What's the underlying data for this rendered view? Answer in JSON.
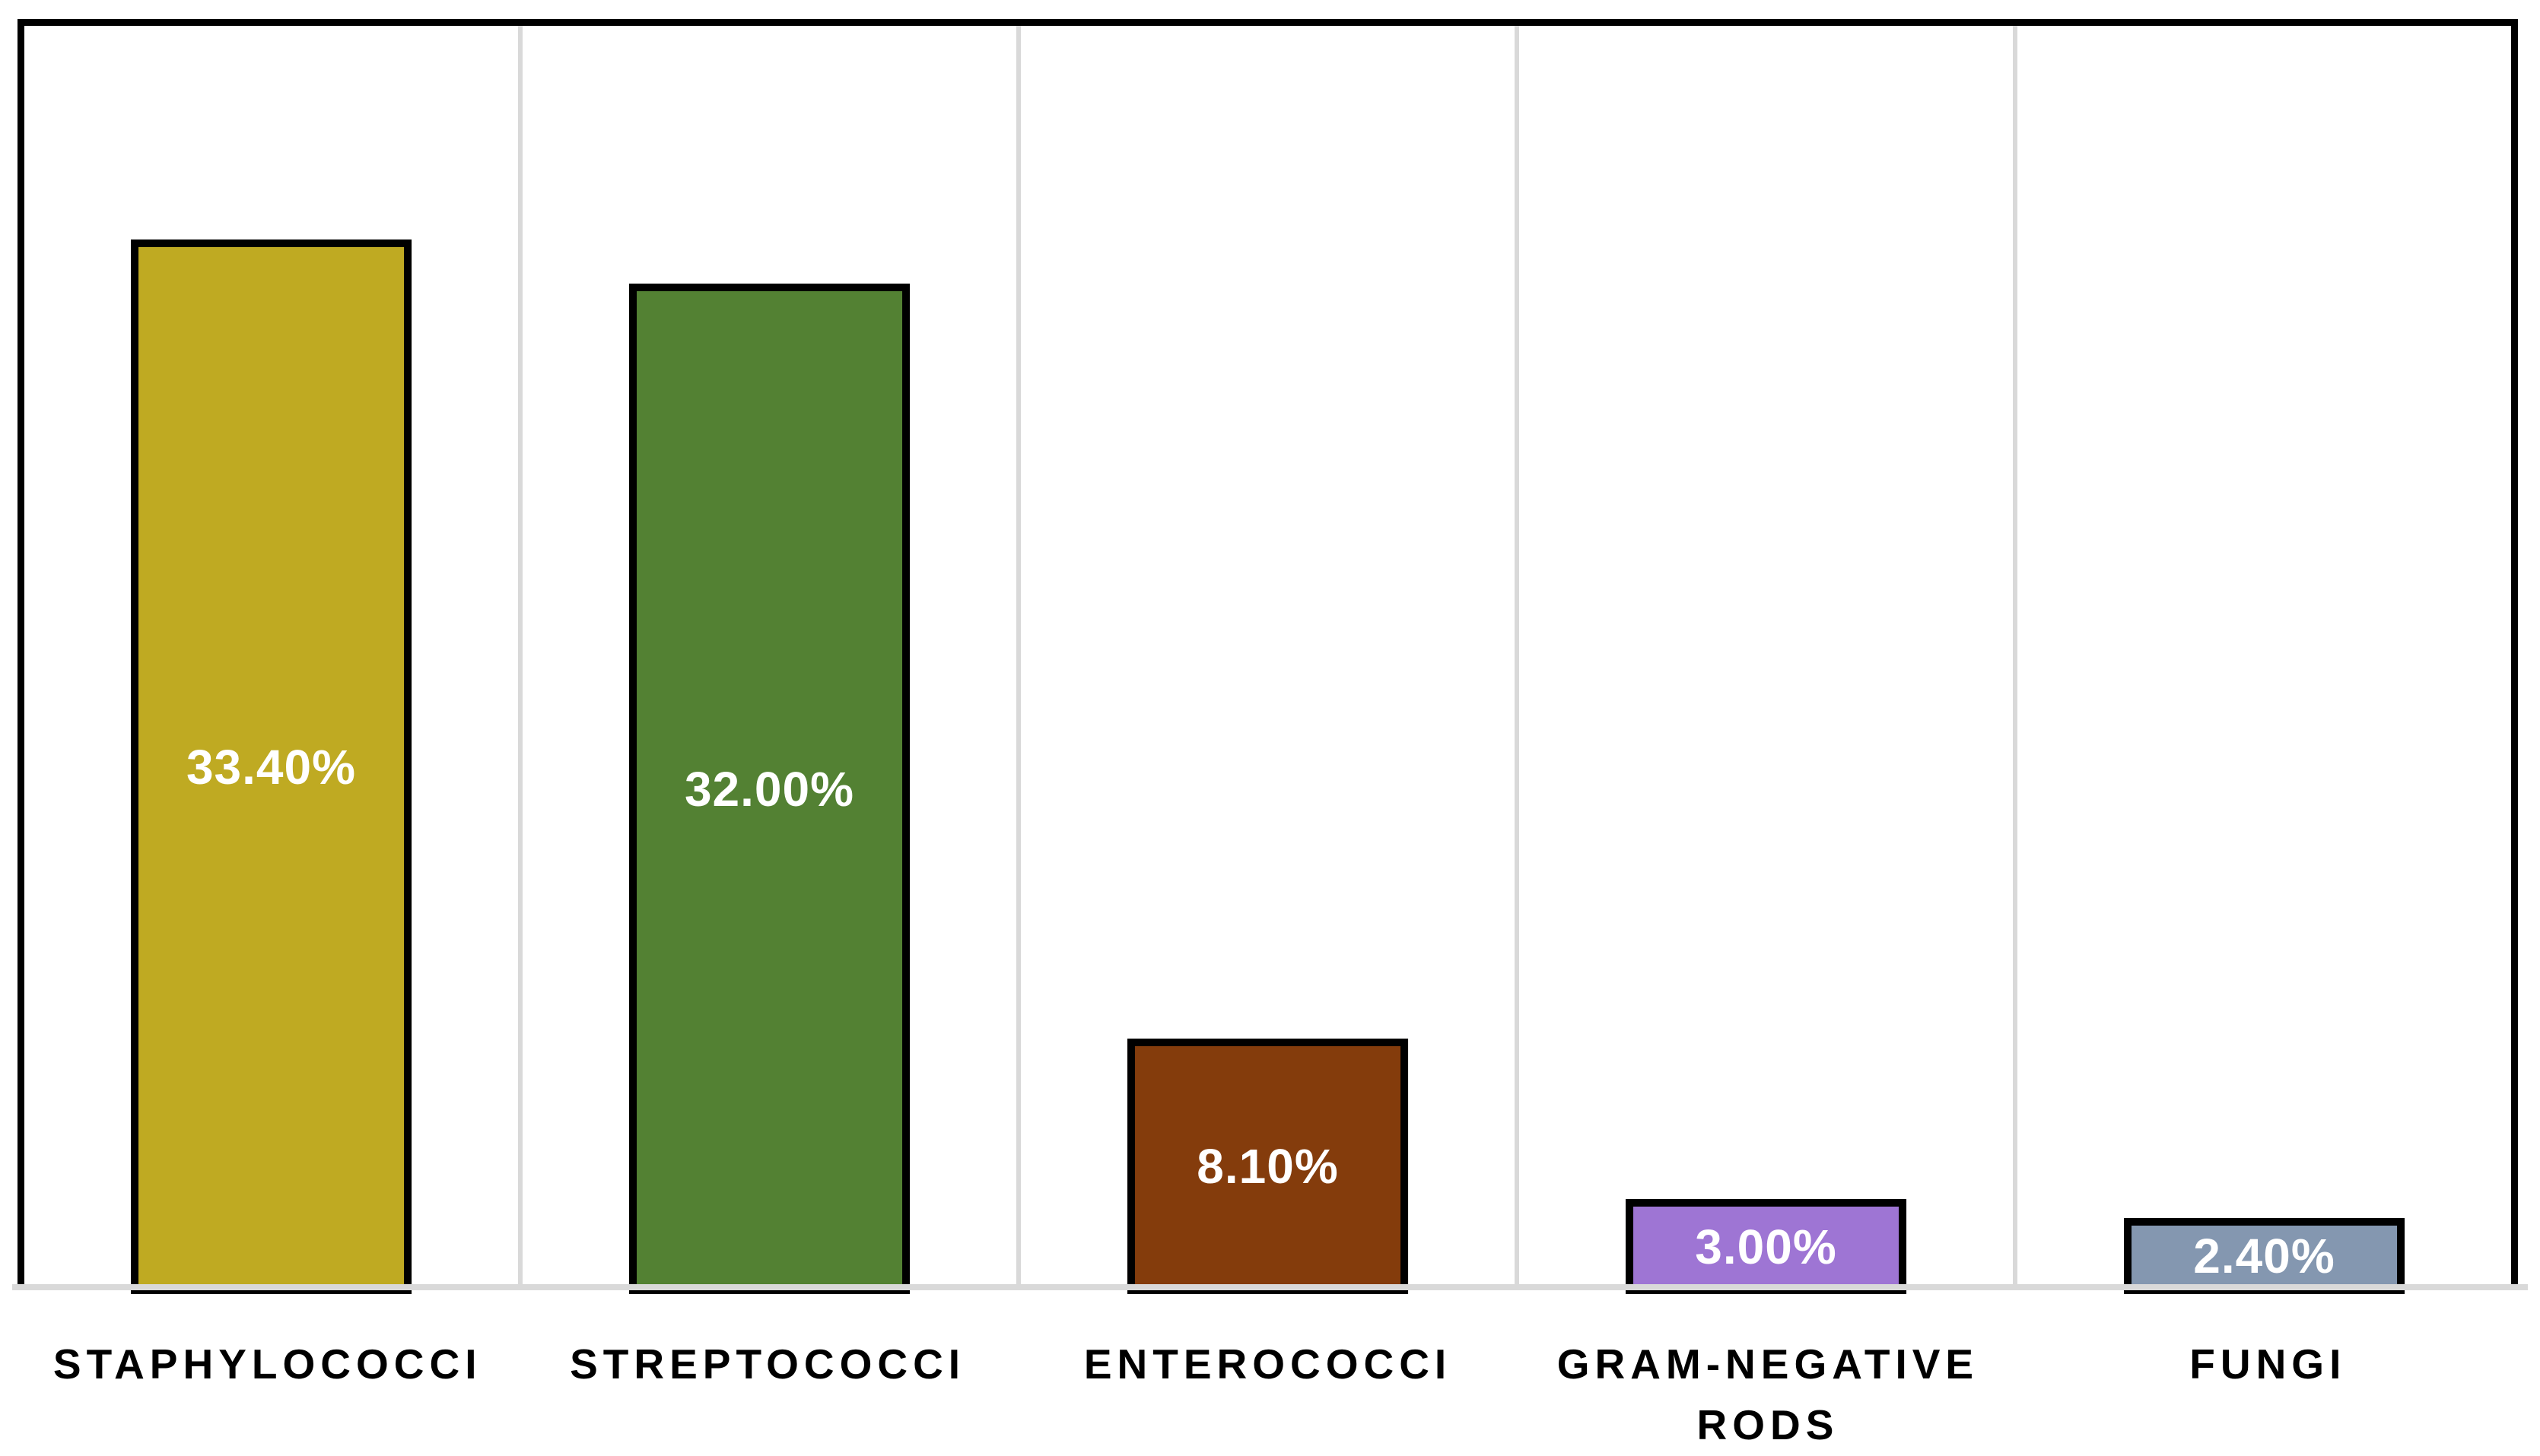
{
  "chart_data": {
    "type": "bar",
    "title": "",
    "xlabel": "",
    "ylabel": "",
    "ylim": [
      0,
      40
    ],
    "grid": "vertical category separator lines, light gray",
    "legend": "none",
    "axis_line_color": "#D9D9D9",
    "gridline_color": "#D9D9D9",
    "bar_border_color": "#000000",
    "plot_border_color": "#000000",
    "data_label_color": "#ffffff",
    "categories": [
      "STAPHYLOCOCCI",
      "STREPTOCOCCI",
      "ENTEROCOCCI",
      "GRAM-NEGATIVE RODS",
      "FUNGI"
    ],
    "values": [
      33.4,
      32.0,
      8.1,
      3.0,
      2.4
    ],
    "data_labels": [
      "33.40%",
      "32.00%",
      "8.10%",
      "3.00%",
      "2.40%"
    ],
    "bar_colors": [
      "#BFAA22",
      "#538133",
      "#843C0C",
      "#9E75D4",
      "#8497B0"
    ]
  }
}
